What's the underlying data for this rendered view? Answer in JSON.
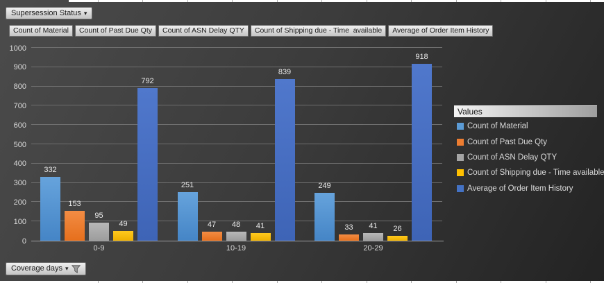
{
  "filters": {
    "supersession_status": {
      "label": "Supersession Status",
      "icon": "dropdown-caret"
    },
    "coverage_days": {
      "label": "Coverage days",
      "icons": [
        "dropdown-caret",
        "filter-funnel"
      ]
    }
  },
  "value_field_buttons": [
    "Count of Material",
    "Count of Past Due Qty",
    "Count of ASN Delay QTY",
    "Count of Shipping due - Time  available",
    "Average of Order Item History"
  ],
  "icons": {
    "dropdown_caret": "▾",
    "filter_funnel": "funnel-shape"
  },
  "chart_data": {
    "type": "bar",
    "title": "",
    "legend_title": "Values",
    "legend_position": "right",
    "grid": true,
    "categories": [
      "0-9",
      "10-19",
      "20-29"
    ],
    "x_field": "Coverage days",
    "series": [
      {
        "name": "Count of Material",
        "color": "#5B9BD5",
        "gradient": [
          "#66a3dc",
          "#4585c6"
        ],
        "values": [
          332,
          251,
          249
        ]
      },
      {
        "name": "Count of Past Due Qty",
        "color": "#ED7D31",
        "gradient": [
          "#f28c44",
          "#e66f1c"
        ],
        "values": [
          153,
          47,
          33
        ]
      },
      {
        "name": "Count of ASN Delay QTY",
        "color": "#A5A5A5",
        "gradient": [
          "#b8b8b8",
          "#9c9c9c"
        ],
        "values": [
          95,
          48,
          41
        ]
      },
      {
        "name": "Count of Shipping due - Time available",
        "color": "#FFC000",
        "gradient": [
          "#ffc91e",
          "#eeb000"
        ],
        "values": [
          49,
          41,
          26
        ]
      },
      {
        "name": "Average of Order Item History",
        "color": "#4472C4",
        "gradient": [
          "#5078cc",
          "#3e64b6"
        ],
        "values": [
          792,
          839,
          918
        ]
      }
    ],
    "ylim": [
      0,
      1000
    ],
    "ytick_step": 100,
    "xlabel": "",
    "ylabel": ""
  },
  "theme": {
    "background_start": "#4b4b4b",
    "background_end": "#232323",
    "gridline": "#6f6f6f",
    "axis_line": "#9fa0a2",
    "tick_label_color": "#d9d9d9",
    "data_label_color": "#eaeaea",
    "button_text_color": "#1c1c1c",
    "legend_text_color": "#d9d9d9",
    "worksheet_strip_color": "#ffffff"
  }
}
